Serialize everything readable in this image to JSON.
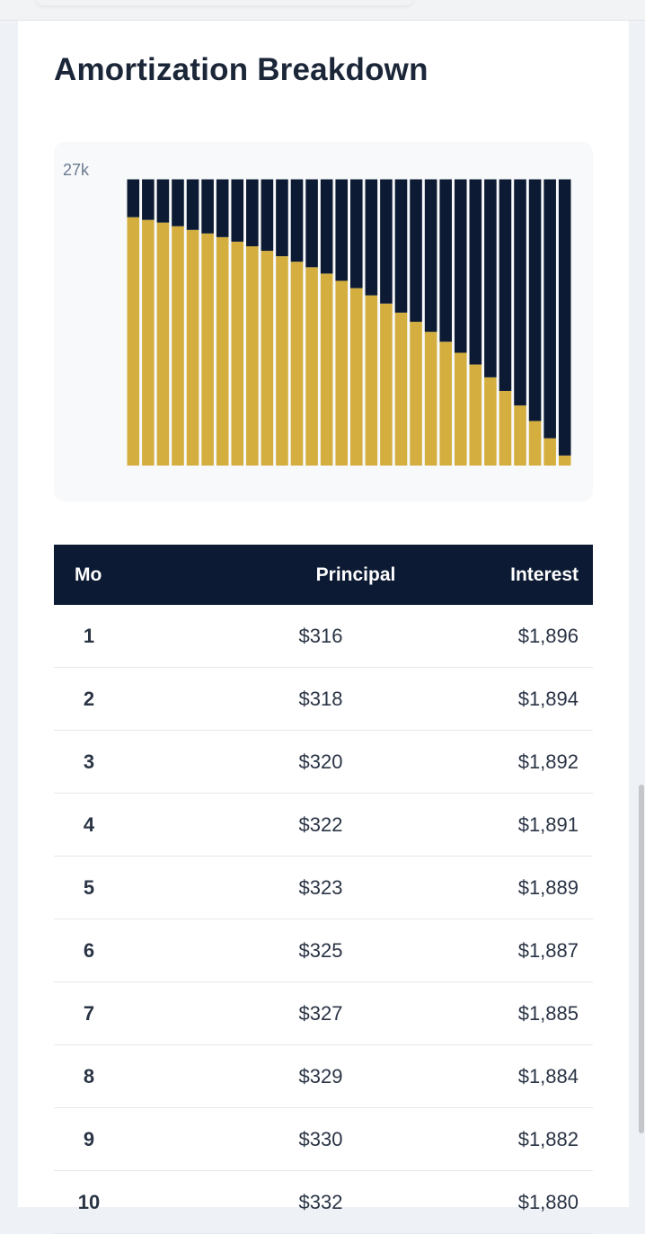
{
  "title": "Amortization Breakdown",
  "chart_data": {
    "type": "stacked-bar",
    "categories": [
      null,
      null,
      null,
      null,
      null,
      null,
      null,
      null,
      null,
      null,
      null,
      null,
      null,
      null,
      null,
      null,
      null,
      null,
      null,
      null,
      null,
      null,
      null,
      null,
      null,
      null,
      null,
      null,
      null,
      null
    ],
    "series": [
      {
        "name": "Interest",
        "color": "#d4af3f",
        "values": [
          23030,
          22780,
          22530,
          22190,
          21850,
          21520,
          21180,
          20760,
          20330,
          19910,
          19410,
          18900,
          18390,
          17800,
          17130,
          16450,
          15780,
          15020,
          14180,
          13330,
          12400,
          11480,
          10460,
          9370,
          8180,
          6920,
          5570,
          4130,
          2530,
          930
        ]
      },
      {
        "name": "Principal",
        "color": "#0c1a33",
        "values": [
          3510,
          3760,
          4010,
          4350,
          4690,
          5020,
          5360,
          5780,
          6210,
          6630,
          7130,
          7640,
          8150,
          8740,
          9410,
          10090,
          10760,
          11520,
          12360,
          13210,
          14140,
          15060,
          16080,
          17170,
          18360,
          19620,
          20970,
          22410,
          24010,
          25610
        ]
      }
    ],
    "ylim": [
      0,
      27000
    ],
    "yticks": [
      {
        "value": 27000,
        "label": "27k"
      }
    ]
  },
  "table": {
    "columns": [
      "Mo",
      "Principal",
      "Interest"
    ],
    "rows": [
      [
        "1",
        "$316",
        "$1,896"
      ],
      [
        "2",
        "$318",
        "$1,894"
      ],
      [
        "3",
        "$320",
        "$1,892"
      ],
      [
        "4",
        "$322",
        "$1,891"
      ],
      [
        "5",
        "$323",
        "$1,889"
      ],
      [
        "6",
        "$325",
        "$1,887"
      ],
      [
        "7",
        "$327",
        "$1,885"
      ],
      [
        "8",
        "$329",
        "$1,884"
      ],
      [
        "9",
        "$330",
        "$1,882"
      ],
      [
        "10",
        "$332",
        "$1,880"
      ]
    ]
  }
}
